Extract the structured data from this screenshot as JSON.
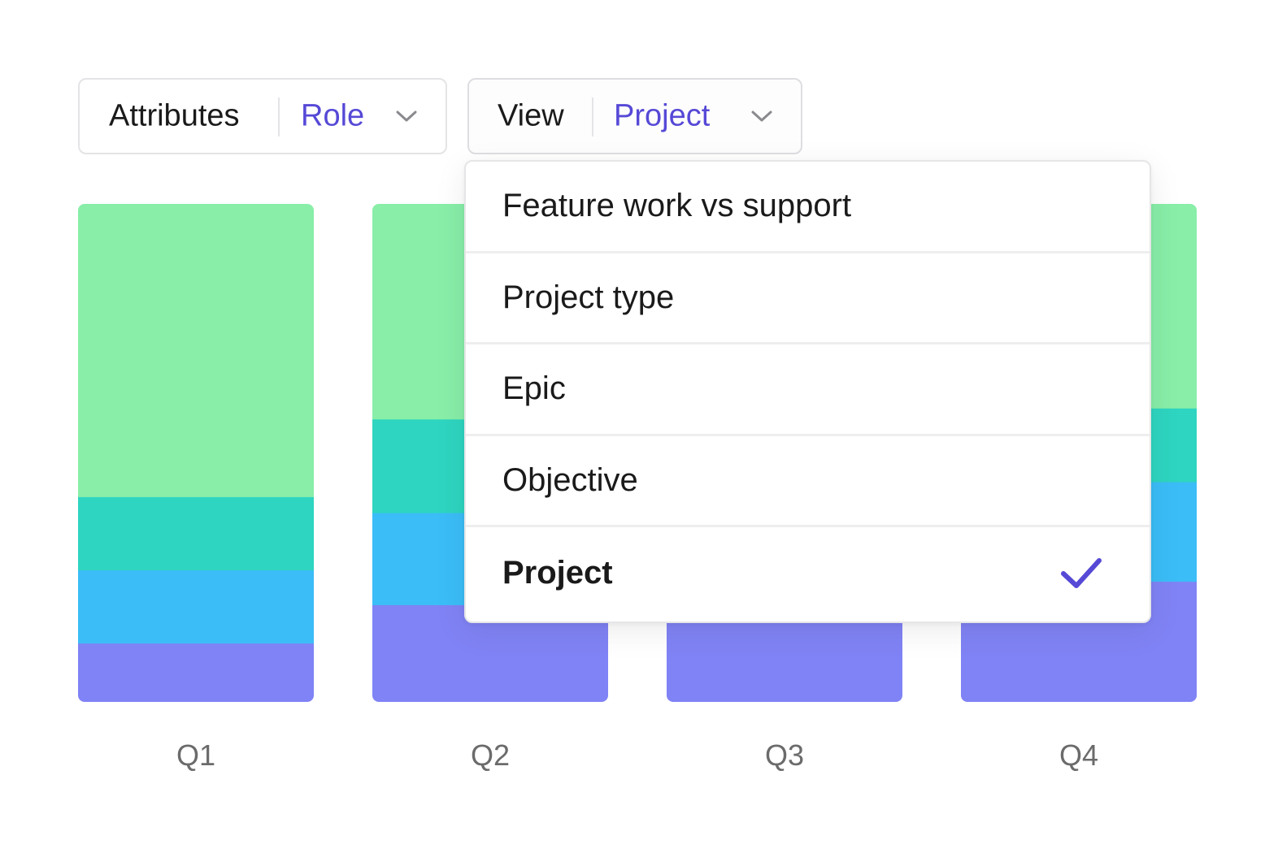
{
  "filters": {
    "attributes": {
      "label": "Attributes",
      "value": "Role",
      "icon": "chevron-down-icon"
    },
    "view": {
      "label": "View",
      "value": "Project",
      "icon": "chevron-down-icon"
    }
  },
  "colors": {
    "accent": "#5649d6",
    "segment_1": "#8083f5",
    "segment_2": "#3bbdf7",
    "segment_3": "#2ed5c0",
    "segment_4": "#88eea8"
  },
  "view_menu": {
    "items": [
      {
        "label": "Feature work vs support",
        "selected": false
      },
      {
        "label": "Project type",
        "selected": false
      },
      {
        "label": "Epic",
        "selected": false
      },
      {
        "label": "Objective",
        "selected": false
      },
      {
        "label": "Project",
        "selected": true,
        "icon": "check-icon"
      }
    ]
  },
  "chart_data": {
    "type": "bar",
    "stacked": true,
    "categories": [
      "Q1",
      "Q2",
      "Q3",
      "Q4"
    ],
    "series": [
      {
        "color": "#8083f5",
        "values": [
          11.8,
          19.5,
          19.5,
          24.2
        ]
      },
      {
        "color": "#3bbdf7",
        "values": [
          14.7,
          18.5,
          18.5,
          20.0
        ]
      },
      {
        "color": "#2ed5c0",
        "values": [
          14.7,
          18.8,
          18.8,
          14.8
        ]
      },
      {
        "color": "#88eea8",
        "values": [
          58.8,
          43.2,
          43.2,
          41.0
        ]
      }
    ],
    "ylim": [
      0,
      100
    ],
    "grid": false,
    "legend": "none"
  }
}
